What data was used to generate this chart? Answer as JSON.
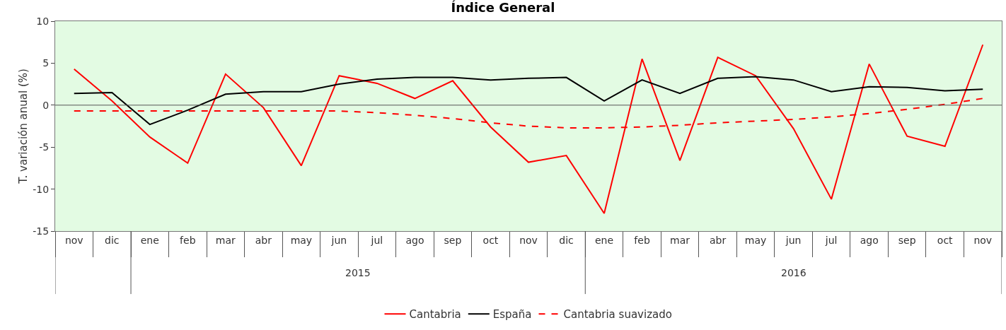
{
  "chart_data": {
    "type": "line",
    "title": "Índice General",
    "ylabel": "T. variación anual (%)",
    "categories": [
      "nov",
      "dic",
      "ene",
      "feb",
      "mar",
      "abr",
      "may",
      "jun",
      "jul",
      "ago",
      "sep",
      "oct",
      "nov",
      "dic",
      "ene",
      "feb",
      "mar",
      "abr",
      "may",
      "jun",
      "jul",
      "ago",
      "sep",
      "oct",
      "nov"
    ],
    "series": [
      {
        "name": "Cantabria",
        "color": "#ff0000",
        "line_style": "solid",
        "values": [
          4.3,
          0.5,
          -3.8,
          -6.9,
          3.7,
          -0.3,
          -7.2,
          3.5,
          2.6,
          0.8,
          2.9,
          -2.6,
          -6.8,
          -6.0,
          -12.9,
          5.5,
          -6.6,
          5.7,
          3.5,
          -2.8,
          -11.2,
          4.9,
          -3.7,
          -4.9,
          7.2
        ]
      },
      {
        "name": "España",
        "color": "#000000",
        "line_style": "solid",
        "values": [
          1.4,
          1.5,
          -2.3,
          -0.6,
          1.3,
          1.6,
          1.6,
          2.5,
          3.1,
          3.3,
          3.3,
          3.0,
          3.2,
          3.3,
          0.5,
          3.0,
          1.4,
          3.2,
          3.4,
          3.0,
          1.6,
          2.2,
          2.1,
          1.7,
          1.9
        ]
      },
      {
        "name": "Cantabria suavizado",
        "color": "#ff0000",
        "line_style": "dashed",
        "values": [
          -0.7,
          -0.7,
          -0.7,
          -0.7,
          -0.7,
          -0.7,
          -0.7,
          -0.7,
          -0.9,
          -1.2,
          -1.6,
          -2.1,
          -2.5,
          -2.7,
          -2.7,
          -2.6,
          -2.4,
          -2.1,
          -1.9,
          -1.7,
          -1.4,
          -1.0,
          -0.5,
          0.1,
          0.8
        ]
      }
    ],
    "ylim": [
      -15,
      10
    ],
    "yticks": [
      -15,
      -10,
      -5,
      0,
      5,
      10
    ],
    "grid": false,
    "legend": "bottom",
    "marker": "none",
    "annotations": [
      "2015",
      "2016"
    ],
    "ref_lines": [
      {
        "axis": "y",
        "value": 0,
        "color": "#555555"
      }
    ]
  }
}
